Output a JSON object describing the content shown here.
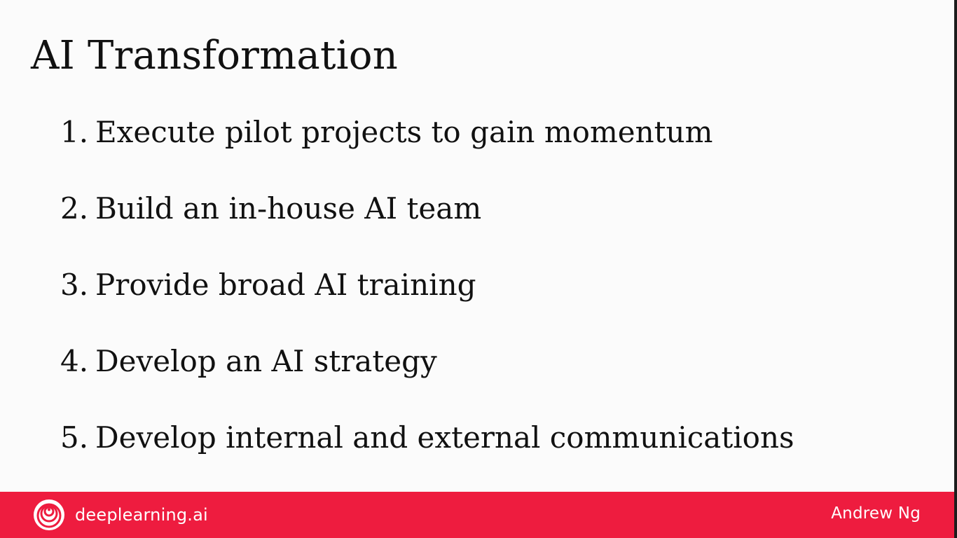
{
  "slide": {
    "title": "AI Transformation",
    "items": [
      {
        "number": "1.",
        "text": "Execute pilot projects to gain momentum"
      },
      {
        "number": "2.",
        "text": "Build an in-house AI team"
      },
      {
        "number": "3.",
        "text": "Provide broad AI training"
      },
      {
        "number": "4.",
        "text": "Develop an AI strategy"
      },
      {
        "number": "5.",
        "text": "Develop internal and external communications"
      }
    ]
  },
  "footer": {
    "brand": "deeplearning.ai",
    "author": "Andrew Ng",
    "logo_icon": "deeplearning-logo-icon",
    "bar_color": "#ee1c3f"
  }
}
